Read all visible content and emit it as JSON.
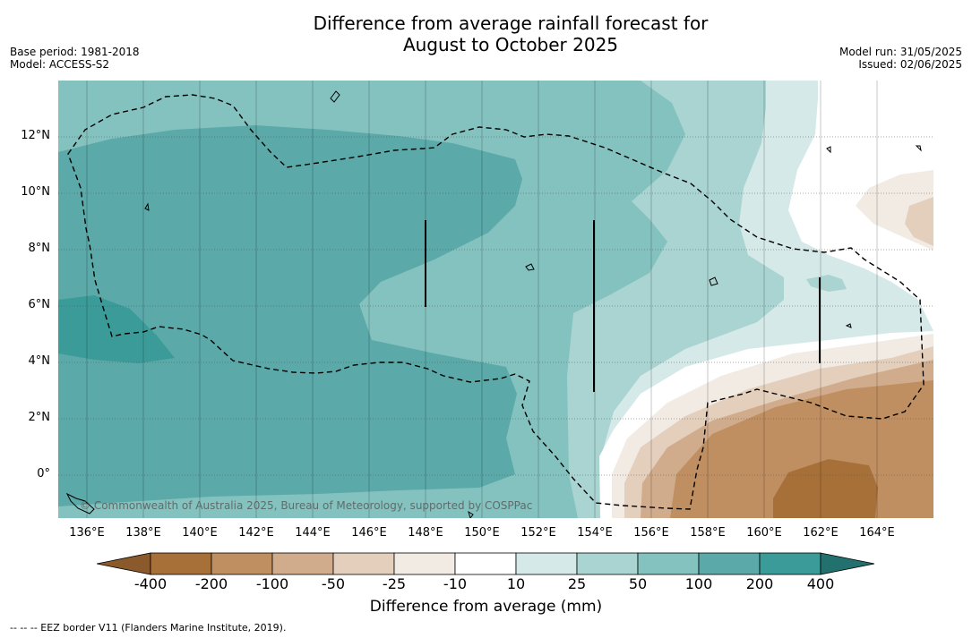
{
  "title": {
    "line1": "Difference from average rainfall forecast for",
    "line2": "August to October 2025"
  },
  "meta_left": {
    "base_period": "Base period: 1981-2018",
    "model": "Model: ACCESS-S2"
  },
  "meta_right": {
    "model_run": "Model run: 31/05/2025",
    "issued": "Issued: 02/06/2025"
  },
  "map": {
    "lat_labels": [
      "12°N",
      "10°N",
      "8°N",
      "6°N",
      "4°N",
      "2°N",
      "0°"
    ],
    "lon_labels": [
      "136°E",
      "138°E",
      "140°E",
      "142°E",
      "144°E",
      "146°E",
      "148°E",
      "150°E",
      "152°E",
      "154°E",
      "156°E",
      "158°E",
      "160°E",
      "162°E",
      "164°E"
    ],
    "copyright": "© Commonwealth of Australia 2025, Bureau of Meteorology, supported by COSPPac",
    "colors": {
      "d400": "#a87039",
      "d200": "#bf8f62",
      "d100": "#d1ac8c",
      "d50": "#e4cfbd",
      "d25": "#f1ebe4",
      "neutral": "#ffffff",
      "w10": "#d5e9e8",
      "w25": "#a9d4d1",
      "w50": "#84c2bf",
      "w100": "#5ba9a8",
      "w200": "#3a9b98",
      "w400": "#23716e"
    }
  },
  "colorbar": {
    "ticks": [
      "-400",
      "-200",
      "-100",
      "-50",
      "-25",
      "-10",
      "10",
      "25",
      "50",
      "100",
      "200",
      "400"
    ],
    "label": "Difference from average (mm)"
  },
  "footnote": "--  --  -- EEZ border V11 (Flanders Marine Institute, 2019)."
}
